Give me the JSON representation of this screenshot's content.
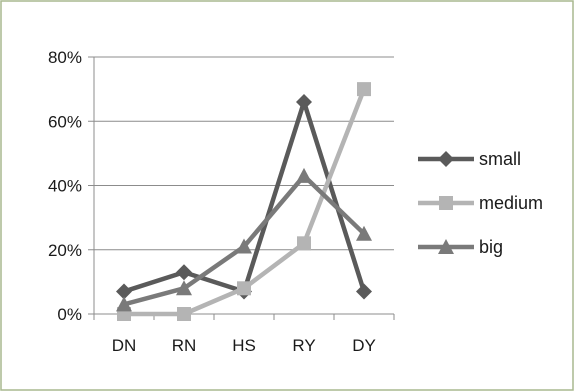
{
  "chart_data": {
    "type": "line",
    "title": "",
    "xlabel": "",
    "ylabel": "",
    "categories": [
      "DN",
      "RN",
      "HS",
      "RY",
      "DY"
    ],
    "ylim": [
      0,
      80
    ],
    "yticks": [
      "0%",
      "20%",
      "40%",
      "60%",
      "80%"
    ],
    "ytick_values": [
      0,
      20,
      40,
      60,
      80
    ],
    "grid": "horizontal",
    "legend_position": "right",
    "series": [
      {
        "name": "small",
        "values": [
          7,
          13,
          7,
          66,
          7
        ],
        "color": "#5a5a5a",
        "marker": "diamond"
      },
      {
        "name": "medium",
        "values": [
          0,
          0,
          8,
          22,
          70
        ],
        "color": "#b4b4b4",
        "marker": "square"
      },
      {
        "name": "big",
        "values": [
          3,
          8,
          21,
          43,
          25
        ],
        "color": "#7a7a7a",
        "marker": "triangle"
      }
    ]
  }
}
